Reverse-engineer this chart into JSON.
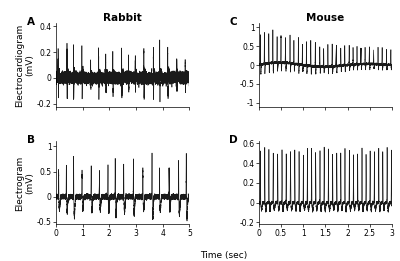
{
  "panel_labels": [
    "A",
    "B",
    "C",
    "D"
  ],
  "rabbit_title": "Rabbit",
  "mouse_title": "Mouse",
  "xlabel": "Time (sec)",
  "ylabel_A": "Electrocardiogram\n(mV)",
  "ylabel_B": "Electrogram\n(mV)",
  "ax_A": {
    "xlim": [
      0,
      5
    ],
    "ylim": [
      -0.22,
      0.42
    ],
    "yticks": [
      -0.2,
      0,
      0.2,
      0.4
    ],
    "xticks": [
      0,
      1,
      2,
      3,
      4,
      5
    ]
  },
  "ax_B": {
    "xlim": [
      0,
      5
    ],
    "ylim": [
      -0.55,
      1.1
    ],
    "yticks": [
      -0.5,
      0,
      0.5,
      1.0
    ],
    "xticks": [
      0,
      1,
      2,
      3,
      4,
      5
    ]
  },
  "ax_C": {
    "xlim": [
      0,
      3
    ],
    "ylim": [
      -1.1,
      1.1
    ],
    "yticks": [
      -1,
      -0.5,
      0,
      0.5,
      1
    ],
    "xticks": [
      0,
      0.5,
      1,
      1.5,
      2,
      2.5,
      3
    ]
  },
  "ax_D": {
    "xlim": [
      0,
      3
    ],
    "ylim": [
      -0.22,
      0.62
    ],
    "yticks": [
      -0.2,
      0,
      0.2,
      0.4,
      0.6
    ],
    "xticks": [
      0,
      0.5,
      1,
      1.5,
      2,
      2.5,
      3
    ]
  },
  "line_color": "#1a1a1a",
  "line_width": 0.45,
  "background_color": "#ffffff",
  "label_fontsize": 6.5,
  "title_fontsize": 7.5,
  "tick_fontsize": 5.5,
  "panel_label_fontsize": 7.5
}
